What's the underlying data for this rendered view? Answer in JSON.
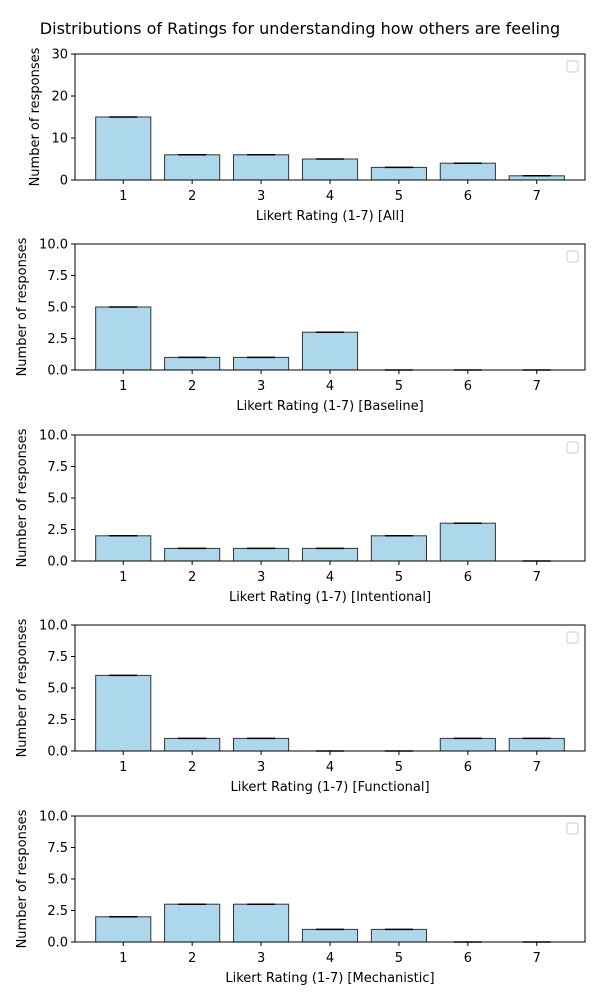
{
  "figure": {
    "title": "Distributions of Ratings for understanding how others are feeling"
  },
  "colors": {
    "bar_fill": "#add8ec",
    "bar_edge": "#333333",
    "axes": "#000000",
    "background": "#ffffff"
  },
  "chart_data": [
    {
      "type": "bar",
      "categories": [
        "1",
        "2",
        "3",
        "4",
        "5",
        "6",
        "7"
      ],
      "values": [
        15,
        6,
        6,
        5,
        3,
        4,
        1
      ],
      "xlabel": "Likert Rating (1-7) [All]",
      "ylabel": "Number of responses",
      "ylim": [
        0,
        30
      ],
      "yticks": [
        0,
        10,
        20,
        30
      ],
      "ytick_labels": [
        "0",
        "10",
        "20",
        "30"
      ],
      "legend": "upper right (empty)"
    },
    {
      "type": "bar",
      "categories": [
        "1",
        "2",
        "3",
        "4",
        "5",
        "6",
        "7"
      ],
      "values": [
        5,
        1,
        1,
        3,
        0,
        0,
        0
      ],
      "xlabel": "Likert Rating (1-7) [Baseline]",
      "ylabel": "Number of responses",
      "ylim": [
        0,
        10
      ],
      "yticks": [
        0,
        2.5,
        5,
        7.5,
        10
      ],
      "ytick_labels": [
        "0.0",
        "2.5",
        "5.0",
        "7.5",
        "10.0"
      ],
      "legend": "upper right (empty)"
    },
    {
      "type": "bar",
      "categories": [
        "1",
        "2",
        "3",
        "4",
        "5",
        "6",
        "7"
      ],
      "values": [
        2,
        1,
        1,
        1,
        2,
        3,
        0
      ],
      "xlabel": "Likert Rating (1-7) [Intentional]",
      "ylabel": "Number of responses",
      "ylim": [
        0,
        10
      ],
      "yticks": [
        0,
        2.5,
        5,
        7.5,
        10
      ],
      "ytick_labels": [
        "0.0",
        "2.5",
        "5.0",
        "7.5",
        "10.0"
      ],
      "legend": "upper right (empty)"
    },
    {
      "type": "bar",
      "categories": [
        "1",
        "2",
        "3",
        "4",
        "5",
        "6",
        "7"
      ],
      "values": [
        6,
        1,
        1,
        0,
        0,
        1,
        1
      ],
      "xlabel": "Likert Rating (1-7) [Functional]",
      "ylabel": "Number of responses",
      "ylim": [
        0,
        10
      ],
      "yticks": [
        0,
        2.5,
        5,
        7.5,
        10
      ],
      "ytick_labels": [
        "0.0",
        "2.5",
        "5.0",
        "7.5",
        "10.0"
      ],
      "legend": "upper right (empty)"
    },
    {
      "type": "bar",
      "categories": [
        "1",
        "2",
        "3",
        "4",
        "5",
        "6",
        "7"
      ],
      "values": [
        2,
        3,
        3,
        1,
        1,
        0,
        0
      ],
      "xlabel": "Likert Rating (1-7) [Mechanistic]",
      "ylabel": "Number of responses",
      "ylim": [
        0,
        10
      ],
      "yticks": [
        0,
        2.5,
        5,
        7.5,
        10
      ],
      "ytick_labels": [
        "0.0",
        "2.5",
        "5.0",
        "7.5",
        "10.0"
      ],
      "legend": "upper right (empty)"
    }
  ]
}
